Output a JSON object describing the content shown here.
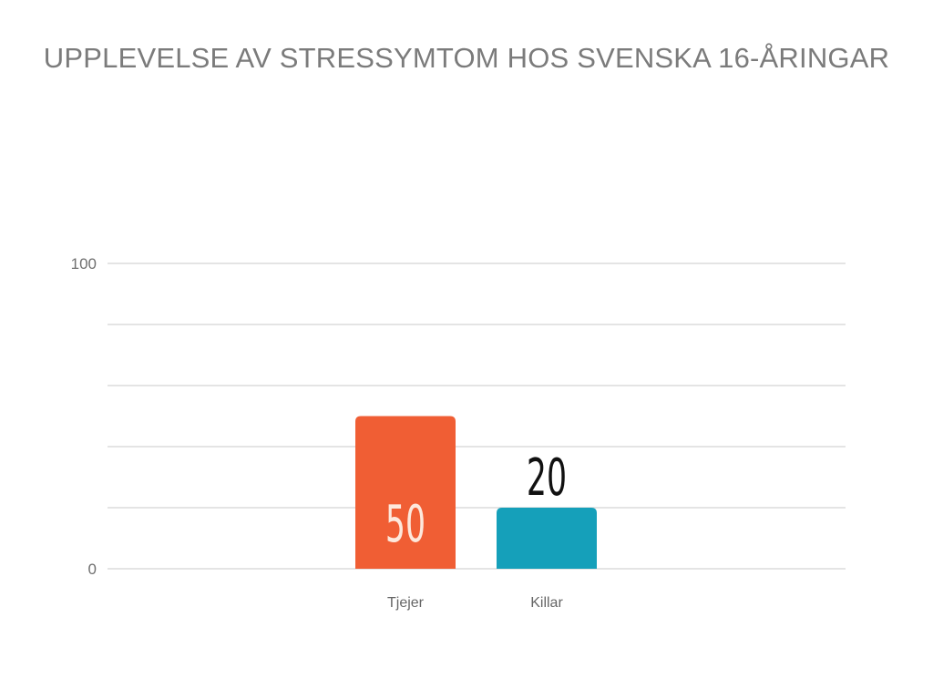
{
  "chart_data": {
    "type": "bar",
    "title": "UPPLEVELSE AV STRESSYMTOM HOS SVENSKA 16-ÅRINGAR",
    "xlabel": "",
    "ylabel": "",
    "categories": [
      "Tjejer",
      "Killar"
    ],
    "values": [
      50,
      20
    ],
    "data_labels": [
      "50",
      "20"
    ],
    "ylim": [
      0,
      100
    ],
    "y_ticks_labeled": [
      {
        "value": 0,
        "label": "0"
      },
      {
        "value": 100,
        "label": "100"
      }
    ],
    "gridlines": [
      0,
      20,
      40,
      60,
      80,
      100
    ],
    "grid": true,
    "legend": "none",
    "bar_colors": [
      "#f05e34",
      "#15a0ba"
    ],
    "label_colors": [
      "#fde8dc",
      "#111111"
    ],
    "label_placement": [
      "inside",
      "above"
    ],
    "grid_color": "#dcdcdc"
  }
}
